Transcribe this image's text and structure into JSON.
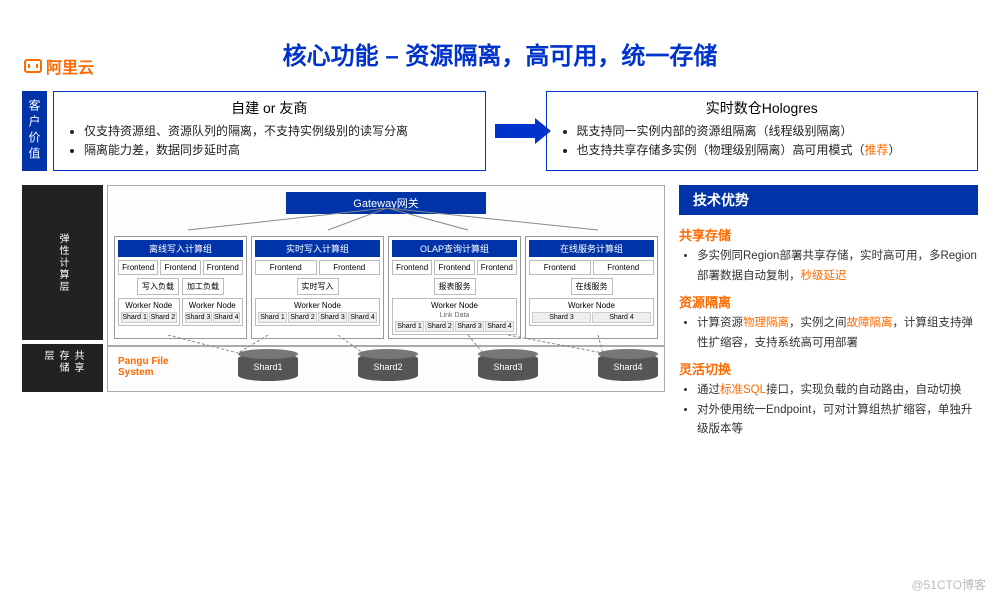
{
  "brand": "阿里云",
  "title": "核心功能 – 资源隔离，高可用，统一存储",
  "row1": {
    "vlabel": "客户价值",
    "left": {
      "title": "自建 or 友商",
      "items": [
        "仅支持资源组、资源队列的隔离，不支持实例级别的读写分离",
        "隔离能力差，数据同步延时高"
      ]
    },
    "right": {
      "title": "实时数仓Hologres",
      "items_html": [
        "既支持同一实例内部的资源组隔离（线程级别隔离）",
        "也支持共享存储多实例（物理级别隔离）高可用模式（<span class='hl'>推荐</span>）"
      ]
    }
  },
  "arch": {
    "vlabel_compute": "弹性计算层",
    "vlabel_storage": "共享存储层",
    "gateway": "Gateway网关",
    "groups": [
      {
        "title": "离线写入计算组",
        "frontends": [
          "Frontend",
          "Frontend",
          "Frontend"
        ],
        "mids": [
          "写入负载",
          "加工负载"
        ],
        "workers": [
          {
            "title": "Worker Node",
            "shards": [
              "Shard 1",
              "Shard 2"
            ]
          },
          {
            "title": "Worker Node",
            "shards": [
              "Shard 3",
              "Shard 4"
            ]
          }
        ]
      },
      {
        "title": "实时写入计算组",
        "frontends": [
          "Frontend",
          "Frontend"
        ],
        "mids": [
          "实时写入"
        ],
        "workers": [
          {
            "title": "Worker Node",
            "shards": [
              "Shard 1",
              "Shard 2",
              "Shard 3",
              "Shard 4"
            ]
          }
        ]
      },
      {
        "title": "OLAP查询计算组",
        "frontends": [
          "Frontend",
          "Frontend",
          "Frontend"
        ],
        "mids": [
          "报表服务"
        ],
        "workers": [
          {
            "title": "Worker Node",
            "sub": "Link Data",
            "shards": [
              "Shard 1",
              "Shard 2",
              "Shard 3",
              "Shard 4"
            ]
          }
        ]
      },
      {
        "title": "在线服务计算组",
        "frontends": [
          "Frontend",
          "Frontend"
        ],
        "mids": [
          "在线服务"
        ],
        "workers": [
          {
            "title": "Worker Node",
            "shards": [
              "Shard 3",
              "Shard 4"
            ]
          }
        ]
      }
    ],
    "pangu": "Pangu File System",
    "shards": [
      "Shard1",
      "Shard2",
      "Shard3",
      "Shard4"
    ]
  },
  "tech": {
    "header": "技术优势",
    "sections": [
      {
        "title": "共享存储",
        "items_html": [
          "多实例同Region部署共享存储，实时高可用，多Region部署数据自动复制，<span class='hl'>秒级延迟</span>"
        ]
      },
      {
        "title": "资源隔离",
        "items_html": [
          "计算资源<span class='hl'>物理隔离</span>，实例之间<span class='hl'>故障隔离</span>，计算组支持弹性扩缩容，支持系统高可用部署"
        ]
      },
      {
        "title": "灵活切换",
        "items_html": [
          "通过<span class='hl'>标准SQL</span>接口，实现负载的自动路由，自动切换",
          "对外使用统一Endpoint，可对计算组热扩缩容，单独升级版本等"
        ]
      }
    ]
  },
  "watermark": "@51CTO博客",
  "colors": {
    "primary": "#0033cc",
    "primary_fill": "#0033a8",
    "accent": "#ff6a00",
    "text": "#222",
    "border": "#999",
    "bg": "#ffffff"
  }
}
